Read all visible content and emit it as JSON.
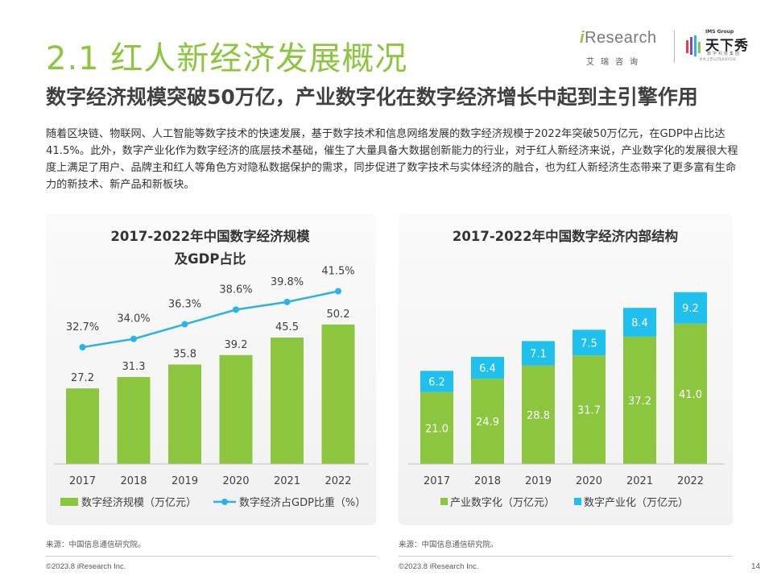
{
  "header": {
    "title": "2.1 红人新经济发展概况",
    "subtitle": "数字经济规模突破50万亿，产业数字化在数字经济增长中起到主引擎作用",
    "body": "随着区块链、物联网、人工智能等数字技术的快速发展，基于数字技术和信息网络发展的数字经济规模于2022年突破50万亿元，在GDP中占比达41.5%。此外，数字产业化作为数字经济的底层技术基础，催生了大量具备大数据创新能力的行业，对于红人新经济来说，产业数字化的发展很大程度上满足了用户、品牌主和红人等角色方对隐私数据保护的需求，同步促进了数字技术与实体经济的融合，也为红人新经济生态带来了更多富有生命力的新技术、新产品和新板块。"
  },
  "logos": {
    "iresearch_i": "i",
    "iresearch_rest": "Research",
    "iresearch_cn": "艾瑞咨询",
    "ims_group": "IMS Group",
    "ims_name": "天下秀",
    "ims_sub": "数字科技集团",
    "ims_code": "水木上市公司|600556"
  },
  "colors": {
    "green": "#8cc63f",
    "blue": "#1fbfee",
    "line": "#2ab3e8",
    "title_green": "#8cc63f"
  },
  "chart_data": [
    {
      "type": "bar",
      "title": "2017-2022年中国数字经济规模及GDP占比",
      "title_lines": [
        "2017-2022年中国数字经济规模",
        "及GDP占比"
      ],
      "categories": [
        "2017",
        "2018",
        "2019",
        "2020",
        "2021",
        "2022"
      ],
      "series": [
        {
          "name": "数字经济规模（万亿元）",
          "type": "bar",
          "values": [
            27.2,
            31.3,
            35.8,
            39.2,
            45.5,
            50.2
          ],
          "labels": [
            "27.2",
            "31.3",
            "35.8",
            "39.2",
            "45.5",
            "50.2"
          ]
        },
        {
          "name": "数字经济占GDP比重（%）",
          "type": "line",
          "values": [
            32.7,
            34.0,
            36.3,
            38.6,
            39.8,
            41.5
          ],
          "labels": [
            "32.7%",
            "34.0%",
            "36.3%",
            "38.6%",
            "39.8%",
            "41.5%"
          ]
        }
      ],
      "legend": "bottom",
      "grid": false
    },
    {
      "type": "bar",
      "stacked": true,
      "title": "2017-2022年中国数字经济内部结构",
      "categories": [
        "2017",
        "2018",
        "2019",
        "2020",
        "2021",
        "2022"
      ],
      "series": [
        {
          "name": "产业数字化（万亿元）",
          "values": [
            21.0,
            24.9,
            28.8,
            31.7,
            37.2,
            41.0
          ],
          "labels": [
            "21.0",
            "24.9",
            "28.8",
            "31.7",
            "37.2",
            "41.0"
          ]
        },
        {
          "name": "数字产业化（万亿元）",
          "values": [
            6.2,
            6.4,
            7.1,
            7.5,
            8.4,
            9.2
          ],
          "labels": [
            "6.2",
            "6.4",
            "7.1",
            "7.5",
            "8.4",
            "9.2"
          ]
        }
      ],
      "legend": "bottom",
      "grid": false
    }
  ],
  "footer": {
    "source_left": "来源：中国信息通信研究院。",
    "source_right": "来源：中国信息通信研究院。",
    "copyright_left": "©2023.8 iResearch Inc.",
    "copyright_right": "©2023.8 iResearch Inc.",
    "page": "14"
  }
}
